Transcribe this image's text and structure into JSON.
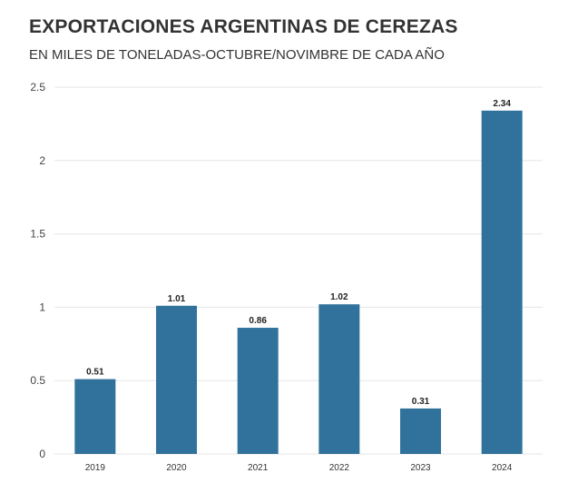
{
  "chart_data": {
    "type": "bar",
    "title": "EXPORTACIONES ARGENTINAS DE CEREZAS",
    "subtitle": "EN MILES DE TONELADAS-OCTUBRE/NOVIMBRE DE CADA AÑO",
    "xlabel": "",
    "ylabel": "",
    "categories": [
      "2019",
      "2020",
      "2021",
      "2022",
      "2023",
      "2024"
    ],
    "values": [
      0.51,
      1.01,
      0.86,
      1.02,
      0.31,
      2.34
    ],
    "data_labels": [
      "0.51",
      "1.01",
      "0.86",
      "1.02",
      "0.31",
      "2.34"
    ],
    "ylim": [
      0,
      2.5
    ],
    "yticks": [
      0,
      0.5,
      1,
      1.5,
      2,
      2.5
    ],
    "ytick_labels": [
      "0",
      "0.5",
      "1",
      "1.5",
      "2",
      "2.5"
    ],
    "grid": true,
    "legend": "none",
    "bar_color": "#31729c",
    "grid_color": "#e6e6e6"
  }
}
